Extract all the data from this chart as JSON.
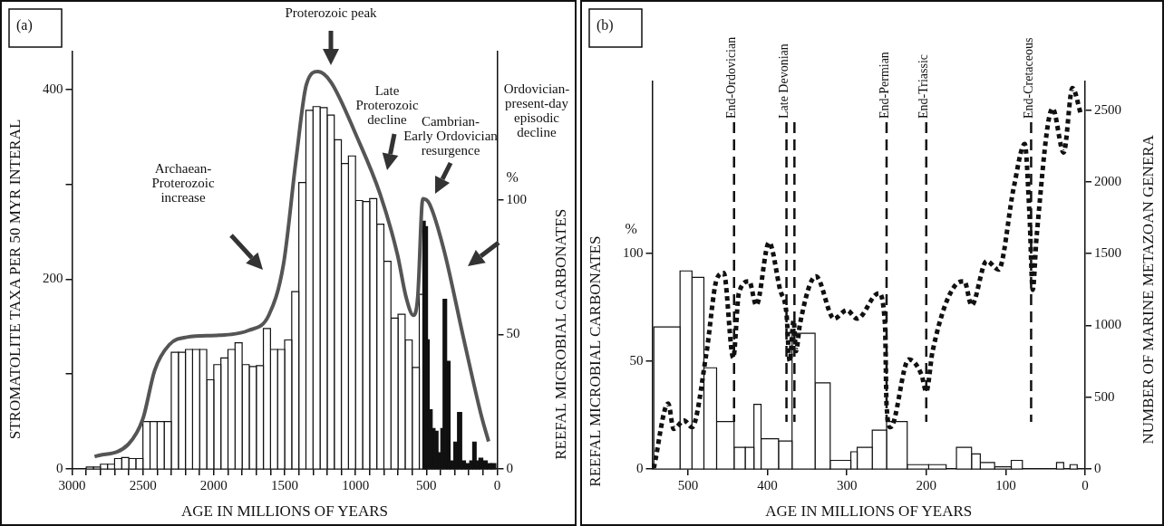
{
  "chart_data": [
    {
      "type": "histogram",
      "xlabel": "AGE IN MILLIONS OF YEARS",
      "ylabel": "STROMATOLITE TAXA PER 50 MYR INTERAL",
      "y2label": "REEFAL MICROBIAL CARBONATES",
      "xlim": [
        3000,
        0
      ],
      "xticks": [
        0,
        {
          "value": 100,
          "label": null
        },
        {
          "value": 200,
          "label": null
        },
        {
          "value": 300,
          "label": null
        },
        {
          "value": 400,
          "label": null
        },
        500,
        {
          "value": 600,
          "label": null
        },
        {
          "value": 700,
          "label": null
        },
        {
          "value": 800,
          "label": null
        },
        {
          "value": 900,
          "label": null
        },
        1000,
        {
          "value": 1100,
          "label": null
        },
        {
          "value": 1200,
          "label": null
        },
        {
          "value": 1300,
          "label": null
        },
        {
          "value": 1400,
          "label": null
        },
        1500,
        {
          "value": 1600,
          "label": null
        },
        {
          "value": 1700,
          "label": null
        },
        {
          "value": 1800,
          "label": null
        },
        {
          "value": 1900,
          "label": null
        },
        2000,
        {
          "value": 2100,
          "label": null
        },
        {
          "value": 2200,
          "label": null
        },
        {
          "value": 2300,
          "label": null
        },
        {
          "value": 2400,
          "label": null
        },
        2500,
        {
          "value": 2600,
          "label": null
        },
        {
          "value": 2700,
          "label": null
        },
        {
          "value": 2800,
          "label": null
        },
        {
          "value": 2900,
          "label": null
        },
        3000
      ],
      "ylim": [
        0,
        440
      ],
      "yticks": [
        0,
        {
          "value": 100,
          "label": null
        },
        200,
        {
          "value": 300,
          "label": null
        },
        400
      ],
      "y2lim": [
        0,
        155
      ],
      "y2ticks": [
        0,
        50,
        100
      ],
      "series": [
        {
          "color": "#ffffff",
          "bins": [
            500,
            550,
            600,
            650,
            700,
            750,
            800,
            850,
            900,
            950,
            1000,
            1050,
            1100,
            1150,
            1200,
            1250,
            1300,
            1350,
            1400,
            1450,
            1500,
            1550,
            1600,
            1650,
            1700,
            1750,
            1800,
            1850,
            1900,
            1950,
            2000,
            2050,
            2100,
            2150,
            2200,
            2250,
            2300,
            2350,
            2400,
            2450,
            2500,
            2550,
            2600,
            2650,
            2700,
            2750,
            2800,
            2850,
            2900
          ],
          "values": [
            184,
            107,
            136,
            163,
            159,
            219,
            258,
            285,
            282,
            283,
            330,
            322,
            347,
            373,
            381,
            382,
            378,
            302,
            187,
            136,
            126,
            126,
            148,
            109,
            108,
            110,
            133,
            126,
            117,
            110,
            94,
            126,
            126,
            126,
            123,
            123,
            50,
            50,
            50,
            50,
            11,
            11,
            12,
            11,
            5,
            5,
            2,
            2
          ]
        },
        {
          "color": "#111111",
          "axis": "y2",
          "bins": [
            10,
            41,
            71,
            102,
            129,
            149,
            173,
            194,
            224,
            251,
            280,
            306,
            333,
            357,
            382,
            398,
            418,
            439,
            459,
            480,
            492,
            508,
            525
          ],
          "values": [
            2,
            2,
            3,
            4,
            3,
            10,
            3,
            2,
            3,
            21,
            10,
            3,
            40,
            63,
            15,
            6,
            14,
            15,
            22,
            48,
            90,
            92
          ]
        },
        {
          "type": "line",
          "color": "#555555",
          "x": [
            2841,
            2603,
            2500,
            2417,
            2314,
            2190,
            1963,
            1756,
            1612,
            1508,
            1418,
            1347,
            1265,
            1174,
            990,
            827,
            704,
            643,
            592,
            561,
            525,
            480,
            378,
            235,
            112,
            61
          ],
          "values": [
            13,
            26,
            53,
            104,
            131,
            139,
            141,
            146,
            162,
            216,
            328,
            405,
            419,
            408,
            350,
            290,
            226,
            181,
            162,
            181,
            285,
            280,
            232,
            136,
            56,
            29
          ]
        }
      ],
      "annotations": [
        "(a)",
        "Proterozoic peak",
        "Late Proterozoic decline",
        "Cambrian-Early Ordovician resurgence",
        "Ordovician-present-day episodic decline",
        "Archaean-Proterozoic increase",
        "%"
      ]
    },
    {
      "type": "histogram",
      "xlabel": "AGE IN MILLIONS OF YEARS",
      "ylabel": "REEFAL MICROBIAL CARBONATES",
      "y2label": "NUMBER OF MARINE METAZOAN GENERA",
      "xlim": [
        545,
        0
      ],
      "xticks": [
        0,
        100,
        200,
        300,
        400,
        500
      ],
      "ylim": [
        0,
        180
      ],
      "yticks": [
        0,
        50,
        100
      ],
      "y2lim": [
        0,
        2700
      ],
      "y2ticks": [
        0,
        500,
        1000,
        1500,
        2000,
        2500
      ],
      "series": [
        {
          "color": "#ffffff",
          "bins": [
            10,
            19,
            27,
            36,
            79,
            93,
            114,
            132,
            143,
            162,
            175,
            197,
            224,
            250,
            268,
            287,
            295,
            321,
            340,
            369,
            386,
            408,
            417,
            428,
            442,
            464,
            480,
            495,
            510,
            543
          ],
          "values": [
            2,
            null,
            3,
            null,
            4,
            1,
            3,
            7,
            10,
            null,
            2,
            2,
            22,
            18,
            10,
            8,
            4,
            40,
            63,
            13,
            14,
            30,
            10,
            10,
            22,
            47,
            89,
            92,
            66
          ]
        },
        {
          "type": "line",
          "axis": "y2",
          "color": "#111111",
          "line_style": "dotted",
          "x": [
            543,
            525,
            518,
            505,
            495,
            477,
            464,
            455,
            443,
            436,
            423,
            414,
            398,
            384,
            376,
            372,
            367,
            364,
            359,
            339,
            316,
            300,
            287,
            260,
            252,
            250,
            245,
            222,
            206,
            200,
            192,
            163,
            152,
            143,
            124,
            109,
            90,
            76,
            70,
            66,
            61,
            41,
            27,
            16,
            5
          ],
          "values": [
            7,
            456,
            279,
            338,
            291,
            799,
            1319,
            1366,
            775,
            1224,
            1307,
            1141,
            1578,
            1248,
            1082,
            751,
            1035,
            822,
            1011,
            1342,
            1047,
            1106,
            1047,
            1224,
            1011,
            444,
            291,
            763,
            657,
            539,
            822,
            1283,
            1307,
            1141,
            1449,
            1389,
            1957,
            2264,
            1767,
            1248,
            1626,
            2512,
            2205,
            2654,
            2465
          ]
        }
      ],
      "ref_lines": [
        {
          "axis": "x",
          "value": 442,
          "label": "End-Ordovician",
          "color": "#111111",
          "line_style": "dashed"
        },
        {
          "axis": "x",
          "value": 376,
          "label": "Late Devonian",
          "color": "#111111",
          "line_style": "dashed"
        },
        {
          "axis": "x",
          "value": 366,
          "color": "#111111",
          "line_style": "dashed"
        },
        {
          "axis": "x",
          "value": 250,
          "label": "End-Permian",
          "color": "#111111",
          "line_style": "dashed"
        },
        {
          "axis": "x",
          "value": 200,
          "label": "End-Triassic",
          "color": "#111111",
          "line_style": "dashed"
        },
        {
          "axis": "x",
          "value": 68,
          "label": "End-Cretaceous",
          "color": "#111111",
          "line_style": "dashed"
        }
      ],
      "annotations": [
        "(b)",
        "%"
      ]
    }
  ]
}
